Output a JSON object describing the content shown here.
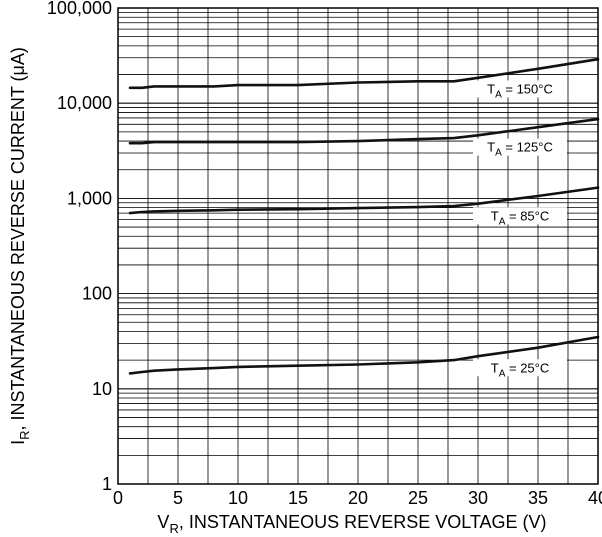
{
  "chart_data": {
    "type": "line",
    "title": "",
    "xlabel": {
      "main": "V",
      "sub": "R",
      "rest": ", INSTANTANEOUS REVERSE VOLTAGE (V)"
    },
    "ylabel": {
      "main": "I",
      "sub": "R",
      "rest": ", INSTANTANEOUS REVERSE CURRENT (μA)"
    },
    "x_scale": "linear",
    "y_scale": "log",
    "xlim": [
      0,
      40
    ],
    "ylim": [
      1,
      100000
    ],
    "x_ticks": [
      0,
      5,
      10,
      15,
      20,
      25,
      30,
      35,
      40
    ],
    "x_tick_labels": [
      "0",
      "5",
      "10",
      "15",
      "20",
      "25",
      "30",
      "35",
      "40"
    ],
    "y_ticks": [
      1,
      10,
      100,
      1000,
      10000,
      100000
    ],
    "y_tick_labels": [
      "1",
      "10",
      "100",
      "1,000",
      "10,000",
      "100,000"
    ],
    "grid": true,
    "legend": "none",
    "series": [
      {
        "label": {
          "main": "T",
          "sub": "A",
          "rest": " = 150°C"
        },
        "x": [
          1,
          2,
          3,
          5,
          8,
          10,
          15,
          20,
          25,
          28,
          30,
          35,
          40
        ],
        "y": [
          14500,
          14500,
          15000,
          15000,
          15000,
          15500,
          15500,
          16500,
          17000,
          17000,
          18500,
          23000,
          29000
        ]
      },
      {
        "label": {
          "main": "T",
          "sub": "A",
          "rest": " = 125°C"
        },
        "x": [
          1,
          2,
          3,
          5,
          10,
          15,
          20,
          25,
          28,
          30,
          35,
          40
        ],
        "y": [
          3800,
          3800,
          3900,
          3900,
          3900,
          3900,
          4000,
          4200,
          4300,
          4600,
          5600,
          6800
        ]
      },
      {
        "label": {
          "main": "T",
          "sub": "A",
          "rest": " = 85°C"
        },
        "x": [
          1,
          2,
          3,
          5,
          8,
          10,
          15,
          20,
          25,
          28,
          30,
          35,
          40
        ],
        "y": [
          700,
          720,
          730,
          740,
          750,
          760,
          770,
          790,
          810,
          830,
          880,
          1060,
          1300
        ]
      },
      {
        "label": {
          "main": "T",
          "sub": "A",
          "rest": " = 25°C"
        },
        "x": [
          1,
          2,
          3,
          5,
          8,
          10,
          15,
          20,
          25,
          28,
          30,
          35,
          40
        ],
        "y": [
          14.5,
          15,
          15.5,
          16,
          16.5,
          17,
          17.5,
          18,
          19,
          20,
          22,
          27,
          35
        ]
      }
    ],
    "line_color": "#111111",
    "grid_color": "#000000"
  }
}
